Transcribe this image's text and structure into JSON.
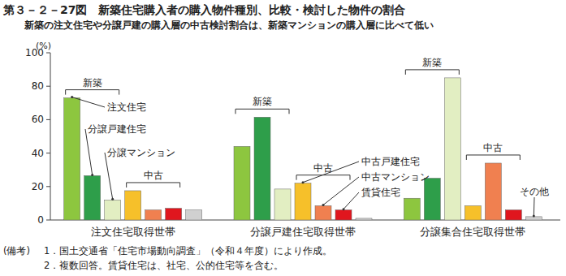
{
  "chart_data": {
    "type": "bar",
    "title": "第３－２－27図　新築住宅購入者の購入物件種別、比較・検討した物件の割合",
    "subtitle": "新築の注文住宅や分譲戸建の購入層の中古検討割合は、新築マンションの購入層に比べて低い",
    "y_label": "(%)",
    "categories": [
      "注文住宅取得世帯",
      "分譲戸建住宅取得世帯",
      "分譲集合住宅取得世帯"
    ],
    "series": [
      {
        "name": "注文住宅",
        "color": "#8dc63f",
        "values": [
          73,
          44,
          13
        ]
      },
      {
        "name": "分譲戸建住宅",
        "color": "#2e9e4a",
        "values": [
          26.5,
          61.5,
          25
        ]
      },
      {
        "name": "分譲マンション",
        "color": "#e2eec2",
        "values": [
          12,
          18.5,
          85
        ]
      },
      {
        "name": "中古戸建住宅",
        "color": "#f6c02a",
        "values": [
          17.5,
          22,
          8.5
        ]
      },
      {
        "name": "中古マンション",
        "color": "#f08050",
        "values": [
          6,
          8.5,
          34
        ]
      },
      {
        "name": "賃貸住宅",
        "color": "#e0161e",
        "values": [
          7,
          6,
          6
        ]
      },
      {
        "name": "その他",
        "color": "#d0d0d0",
        "values": [
          6,
          1,
          2
        ]
      }
    ],
    "annotations": {
      "new": "新築",
      "used": "中古"
    },
    "notes": [
      "(備考)",
      "1．国土交通省「住宅市場動向調査」（令和４年度）により作成。",
      "2．複数回答。賃貸住宅は、社宅、公的住宅等を含む。"
    ],
    "ylim": [
      0,
      100
    ],
    "yticks": [
      0,
      20,
      40,
      60,
      80,
      100
    ],
    "grid": false
  }
}
